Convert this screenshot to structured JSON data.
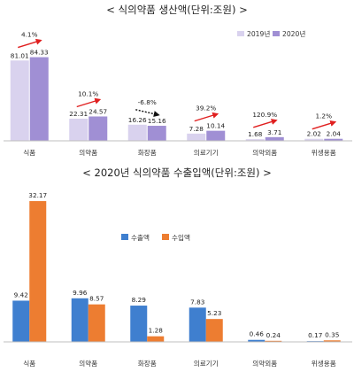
{
  "chart_data": [
    {
      "type": "bar",
      "title": "< 식의약품 생산액(단위:조원) >",
      "categories": [
        "식품",
        "의약품",
        "화장품",
        "의료기기",
        "의약외품",
        "위생용품"
      ],
      "series": [
        {
          "name": "2019년",
          "color": "#d9d2ee",
          "values": [
            81.01,
            22.31,
            16.26,
            7.28,
            1.68,
            2.02
          ]
        },
        {
          "name": "2020년",
          "color": "#a08fd4",
          "values": [
            84.33,
            24.57,
            15.16,
            10.14,
            3.71,
            2.04
          ]
        }
      ],
      "growth": [
        "4.1%",
        "10.1%",
        "-6.8%",
        "39.2%",
        "120.9%",
        "1.2%"
      ],
      "growth_direction": [
        "up",
        "up",
        "down",
        "up",
        "up",
        "up"
      ],
      "arrow_color": "#e02020",
      "decline_arrow_color": "#111111",
      "ylim": [
        0,
        100
      ],
      "legend_position": "top-right",
      "grid": false
    },
    {
      "type": "bar",
      "title": "< 2020년 식의약품 수출입액(단위:조원) >",
      "categories": [
        "식품",
        "의약품",
        "화장품",
        "의료기기",
        "의약외품",
        "위생용품"
      ],
      "series": [
        {
          "name": "수출액",
          "color": "#3f7fcf",
          "values": [
            9.42,
            9.96,
            8.29,
            7.83,
            0.46,
            0.17
          ]
        },
        {
          "name": "수입액",
          "color": "#ed7d31",
          "values": [
            32.17,
            8.57,
            1.28,
            5.23,
            0.24,
            0.35
          ]
        }
      ],
      "ylim": [
        0,
        34
      ],
      "legend_position": "center",
      "grid": false
    }
  ]
}
